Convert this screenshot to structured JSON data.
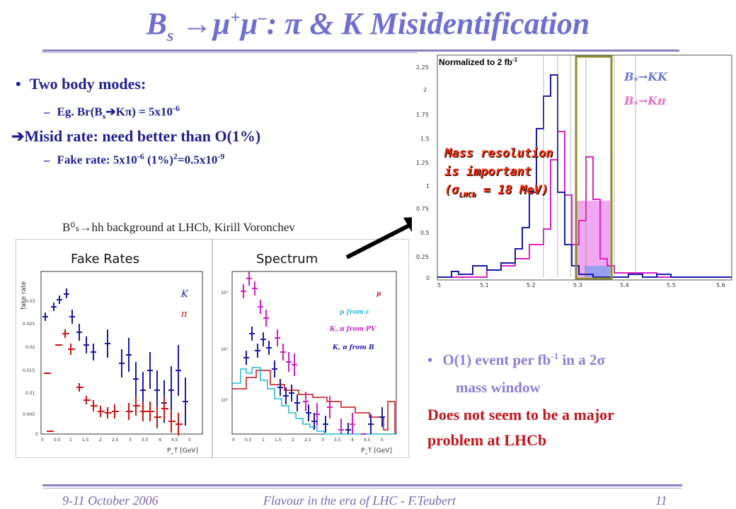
{
  "title": {
    "b": "B",
    "s": "s",
    "arrow": " →",
    "mu": "µ",
    "plus": "+",
    "minus": "–",
    "rest": ": π & K Misidentification"
  },
  "bullets": {
    "item1": "Two body modes:",
    "item2_pre": "Eg. Br(B",
    "item2_sub": "s",
    "item2_arrow": "➔",
    "item2_post": "Kπ) = 5x10",
    "item2_sup": "-6",
    "item3_arrow": "➔",
    "item3": "Misid rate: need better than O(1%)",
    "item4_pre": "Fake rate: 5x10",
    "item4_sup1": "-6",
    "item4_mid": " (1%)",
    "item4_sup2": "2",
    "item4_post": "=0.5x10",
    "item4_sup3": "-9"
  },
  "left_figure": {
    "header": "B⁰ₛ→hh background at LHCb, Kirill Voronchev",
    "panel1_title": "Fake Rates",
    "panel2_title": "Spectrum",
    "panel1_ylabel": "fake rate",
    "panel1_legend": [
      "K",
      "π"
    ],
    "panel2_legend": [
      "µ",
      "µ from c",
      "K, π from PV",
      "K, π from B"
    ],
    "panel1_yticks": [
      "0.03",
      "0.025",
      "0.02",
      "0.015",
      "0.01",
      "0.005",
      "0"
    ],
    "panel2_yticks": [
      "10⁴",
      "10³",
      "10²"
    ],
    "xticks": [
      "0",
      "0.5",
      "1",
      "1.5",
      "2",
      "2.5",
      "3",
      "3.5",
      "4",
      "4.5",
      "5"
    ],
    "xlabel": "P_T [GeV]"
  },
  "right_figure": {
    "norm_label": "Normalized to 2 fb",
    "norm_sup": "-1",
    "legend": [
      "Bₛ→KK",
      "Bₛ→Kπ"
    ],
    "annotation_line1": "Mass resolution",
    "annotation_line2": "is important",
    "annotation_line3_pre": "(σ",
    "annotation_line3_sub": "LHCb",
    "annotation_line3_post": " = 18 MeV)",
    "yticks": [
      "2.25",
      "2",
      "1.75",
      "1.5",
      "1.25",
      "1",
      "0.75",
      "0.5",
      "0.25",
      "0"
    ],
    "xticks": [
      "5",
      "5.1",
      "5.2",
      "5.3",
      "5.4",
      "5.5",
      "5.6"
    ]
  },
  "bottom_right": {
    "bullet1_pre": "O(1) event per fb",
    "bullet1_sup": "-1",
    "bullet1_post": " in a 2σ",
    "bullet1_line2": "mass window",
    "conclusion_line1": "Does not seem to be a major",
    "conclusion_line2": "problem at LHCb"
  },
  "footer": {
    "date": "9-11 October 2006",
    "conference": "Flavour in the era of LHC - F.Teubert",
    "page": "11"
  },
  "colors": {
    "title": "#6f6fd0",
    "bullet_text": "#1f1f8f",
    "conclusion": "#c2141c",
    "kk_histogram": "#1a1aa8",
    "kpi_histogram": "#e020c0",
    "window_box": "#8a8a30"
  }
}
